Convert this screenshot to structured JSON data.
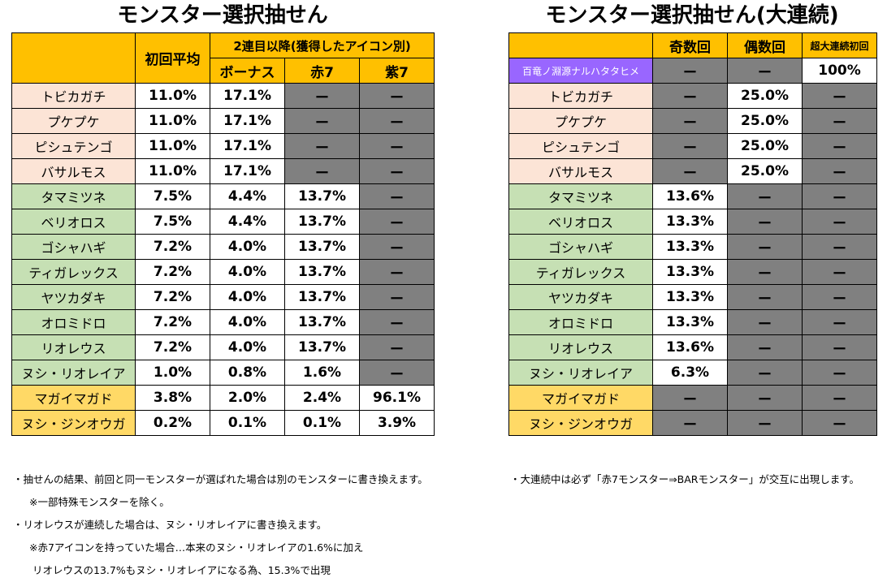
{
  "left": {
    "title": "モンスター選択抽せん",
    "headers": {
      "first_avg": "初回平均",
      "second_onward": "2連目以降(獲得したアイコン別)",
      "bonus": "ボーナス",
      "red7": "赤7",
      "purple7": "紫7"
    },
    "rows": [
      {
        "name": "トビカガチ",
        "c1": "11.0%",
        "c2": "17.1%",
        "c3": "ー",
        "c4": "ー",
        "color": "pink",
        "gray": [
          false,
          false,
          true,
          true
        ]
      },
      {
        "name": "プケプケ",
        "c1": "11.0%",
        "c2": "17.1%",
        "c3": "ー",
        "c4": "ー",
        "color": "pink",
        "gray": [
          false,
          false,
          true,
          true
        ]
      },
      {
        "name": "ピシュテンゴ",
        "c1": "11.0%",
        "c2": "17.1%",
        "c3": "ー",
        "c4": "ー",
        "color": "pink",
        "gray": [
          false,
          false,
          true,
          true
        ]
      },
      {
        "name": "バサルモス",
        "c1": "11.0%",
        "c2": "17.1%",
        "c3": "ー",
        "c4": "ー",
        "color": "pink",
        "gray": [
          false,
          false,
          true,
          true
        ]
      },
      {
        "name": "タマミツネ",
        "c1": "7.5%",
        "c2": "4.4%",
        "c3": "13.7%",
        "c4": "ー",
        "color": "green",
        "gray": [
          false,
          false,
          false,
          true
        ]
      },
      {
        "name": "ベリオロス",
        "c1": "7.5%",
        "c2": "4.4%",
        "c3": "13.7%",
        "c4": "ー",
        "color": "green",
        "gray": [
          false,
          false,
          false,
          true
        ]
      },
      {
        "name": "ゴシャハギ",
        "c1": "7.2%",
        "c2": "4.0%",
        "c3": "13.7%",
        "c4": "ー",
        "color": "green",
        "gray": [
          false,
          false,
          false,
          true
        ]
      },
      {
        "name": "ティガレックス",
        "c1": "7.2%",
        "c2": "4.0%",
        "c3": "13.7%",
        "c4": "ー",
        "color": "green",
        "gray": [
          false,
          false,
          false,
          true
        ]
      },
      {
        "name": "ヤツカダキ",
        "c1": "7.2%",
        "c2": "4.0%",
        "c3": "13.7%",
        "c4": "ー",
        "color": "green",
        "gray": [
          false,
          false,
          false,
          true
        ]
      },
      {
        "name": "オロミドロ",
        "c1": "7.2%",
        "c2": "4.0%",
        "c3": "13.7%",
        "c4": "ー",
        "color": "green",
        "gray": [
          false,
          false,
          false,
          true
        ]
      },
      {
        "name": "リオレウス",
        "c1": "7.2%",
        "c2": "4.0%",
        "c3": "13.7%",
        "c4": "ー",
        "color": "green",
        "gray": [
          false,
          false,
          false,
          true
        ]
      },
      {
        "name": "ヌシ・リオレイア",
        "c1": "1.0%",
        "c2": "0.8%",
        "c3": "1.6%",
        "c4": "ー",
        "color": "green",
        "gray": [
          false,
          false,
          false,
          true
        ]
      },
      {
        "name": "マガイマガド",
        "c1": "3.8%",
        "c2": "2.0%",
        "c3": "2.4%",
        "c4": "96.1%",
        "color": "yellow",
        "gray": [
          false,
          false,
          false,
          false
        ]
      },
      {
        "name": "ヌシ・ジンオウガ",
        "c1": "0.2%",
        "c2": "0.1%",
        "c3": "0.1%",
        "c4": "3.9%",
        "color": "yellow",
        "gray": [
          false,
          false,
          false,
          false
        ]
      }
    ],
    "notes": [
      "・抽せんの結果、前回と同一モンスターが選ばれた場合は別のモンスターに書き換えます。",
      "※一部特殊モンスターを除く。",
      "・リオレウスが連続した場合は、ヌシ・リオレイアに書き換えます。",
      "※赤7アイコンを持っていた場合…本来のヌシ・リオレイアの1.6%に加え",
      "リオレウスの13.7%もヌシ・リオレイアになる為、15.3%で出現"
    ]
  },
  "right": {
    "title": "モンスター選択抽せん(大連続)",
    "headers": {
      "odd": "奇数回",
      "even": "偶数回",
      "super_first": "超大連続初回"
    },
    "rows": [
      {
        "name": "百竜ノ淵源ナルハタタヒメ",
        "c1": "ー",
        "c2": "ー",
        "c3": "100%",
        "color": "purple",
        "gray": [
          true,
          true,
          false
        ]
      },
      {
        "name": "トビカガチ",
        "c1": "ー",
        "c2": "25.0%",
        "c3": "ー",
        "color": "pink",
        "gray": [
          true,
          false,
          true
        ]
      },
      {
        "name": "プケプケ",
        "c1": "ー",
        "c2": "25.0%",
        "c3": "ー",
        "color": "pink",
        "gray": [
          true,
          false,
          true
        ]
      },
      {
        "name": "ピシュテンゴ",
        "c1": "ー",
        "c2": "25.0%",
        "c3": "ー",
        "color": "pink",
        "gray": [
          true,
          false,
          true
        ]
      },
      {
        "name": "バサルモス",
        "c1": "ー",
        "c2": "25.0%",
        "c3": "ー",
        "color": "pink",
        "gray": [
          true,
          false,
          true
        ]
      },
      {
        "name": "タマミツネ",
        "c1": "13.6%",
        "c2": "ー",
        "c3": "ー",
        "color": "green",
        "gray": [
          false,
          true,
          true
        ]
      },
      {
        "name": "ベリオロス",
        "c1": "13.3%",
        "c2": "ー",
        "c3": "ー",
        "color": "green",
        "gray": [
          false,
          true,
          true
        ]
      },
      {
        "name": "ゴシャハギ",
        "c1": "13.3%",
        "c2": "ー",
        "c3": "ー",
        "color": "green",
        "gray": [
          false,
          true,
          true
        ]
      },
      {
        "name": "ティガレックス",
        "c1": "13.3%",
        "c2": "ー",
        "c3": "ー",
        "color": "green",
        "gray": [
          false,
          true,
          true
        ]
      },
      {
        "name": "ヤツカダキ",
        "c1": "13.3%",
        "c2": "ー",
        "c3": "ー",
        "color": "green",
        "gray": [
          false,
          true,
          true
        ]
      },
      {
        "name": "オロミドロ",
        "c1": "13.3%",
        "c2": "ー",
        "c3": "ー",
        "color": "green",
        "gray": [
          false,
          true,
          true
        ]
      },
      {
        "name": "リオレウス",
        "c1": "13.6%",
        "c2": "ー",
        "c3": "ー",
        "color": "green",
        "gray": [
          false,
          true,
          true
        ]
      },
      {
        "name": "ヌシ・リオレイア",
        "c1": "6.3%",
        "c2": "ー",
        "c3": "ー",
        "color": "green",
        "gray": [
          false,
          true,
          true
        ]
      },
      {
        "name": "マガイマガド",
        "c1": "ー",
        "c2": "ー",
        "c3": "ー",
        "color": "yellow",
        "gray": [
          true,
          true,
          true
        ]
      },
      {
        "name": "ヌシ・ジンオウガ",
        "c1": "ー",
        "c2": "ー",
        "c3": "ー",
        "color": "yellow",
        "gray": [
          true,
          true,
          true
        ]
      }
    ],
    "notes": [
      "・大連続中は必ず「赤7モンスター⇒BARモンスター」が交互に出現します。"
    ]
  }
}
